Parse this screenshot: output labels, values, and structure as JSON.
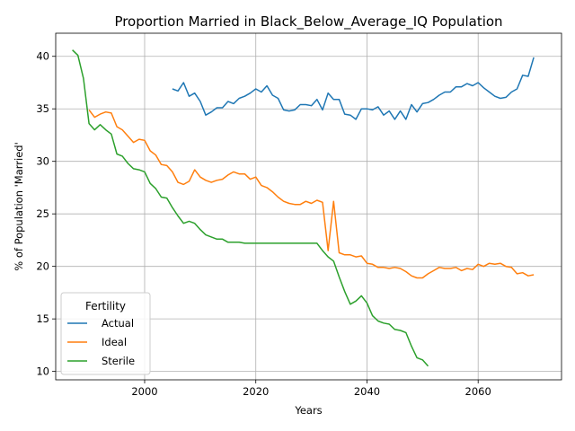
{
  "chart_data": {
    "type": "line",
    "title": "Proportion Married in Black_Below_Average_IQ Population",
    "xlabel": "Years",
    "ylabel": "% of Population 'Married'",
    "xlim": [
      1984,
      2075
    ],
    "ylim": [
      9.2,
      42.2
    ],
    "xticks": [
      2000,
      2020,
      2040,
      2060
    ],
    "yticks": [
      10,
      15,
      20,
      25,
      30,
      35,
      40
    ],
    "grid": true,
    "legend": {
      "title": "Fertility",
      "placement": "lower-left"
    },
    "series": [
      {
        "name": "Actual",
        "color": "#1f77b4",
        "x": [
          2005,
          2006,
          2007,
          2008,
          2009,
          2010,
          2011,
          2012,
          2013,
          2014,
          2015,
          2016,
          2017,
          2018,
          2019,
          2020,
          2021,
          2022,
          2023,
          2024,
          2025,
          2026,
          2027,
          2028,
          2029,
          2030,
          2031,
          2032,
          2033,
          2034,
          2035,
          2036,
          2037,
          2038,
          2039,
          2040,
          2041,
          2042,
          2043,
          2044,
          2045,
          2046,
          2047,
          2048,
          2049,
          2050,
          2051,
          2052,
          2053,
          2054,
          2055,
          2056,
          2057,
          2058,
          2059,
          2060,
          2061,
          2062,
          2063,
          2064,
          2065,
          2066,
          2067,
          2068,
          2069,
          2070
        ],
        "y": [
          36.9,
          36.7,
          37.5,
          36.2,
          36.5,
          35.7,
          34.4,
          34.7,
          35.1,
          35.1,
          35.7,
          35.5,
          36.0,
          36.2,
          36.5,
          36.9,
          36.6,
          37.2,
          36.3,
          36.0,
          34.9,
          34.8,
          34.9,
          35.4,
          35.4,
          35.3,
          35.9,
          34.9,
          36.5,
          35.9,
          35.9,
          34.5,
          34.4,
          34.0,
          35.0,
          35.0,
          34.9,
          35.2,
          34.4,
          34.8,
          34.0,
          34.8,
          34.0,
          35.4,
          34.7,
          35.5,
          35.6,
          35.9,
          36.3,
          36.6,
          36.6,
          37.1,
          37.1,
          37.4,
          37.2,
          37.5,
          37.0,
          36.6,
          36.2,
          36.0,
          36.1,
          36.6,
          36.9,
          38.2,
          38.1,
          39.9
        ]
      },
      {
        "name": "Ideal",
        "color": "#ff7f0e",
        "x": [
          1990,
          1991,
          1992,
          1993,
          1994,
          1995,
          1996,
          1997,
          1998,
          1999,
          2000,
          2001,
          2002,
          2003,
          2004,
          2005,
          2006,
          2007,
          2008,
          2009,
          2010,
          2011,
          2012,
          2013,
          2014,
          2015,
          2016,
          2017,
          2018,
          2019,
          2020,
          2021,
          2022,
          2023,
          2024,
          2025,
          2026,
          2027,
          2028,
          2029,
          2030,
          2031,
          2032,
          2033,
          2034,
          2035,
          2036,
          2037,
          2038,
          2039,
          2040,
          2041,
          2042,
          2043,
          2044,
          2045,
          2046,
          2047,
          2048,
          2049,
          2050,
          2051,
          2052,
          2053,
          2054,
          2055,
          2056,
          2057,
          2058,
          2059,
          2060,
          2061,
          2062,
          2063,
          2064,
          2065,
          2066,
          2067,
          2068,
          2069,
          2070
        ],
        "y": [
          34.9,
          34.2,
          34.5,
          34.7,
          34.6,
          33.3,
          33.0,
          32.4,
          31.8,
          32.1,
          32.0,
          31.0,
          30.6,
          29.7,
          29.6,
          29.0,
          28.0,
          27.8,
          28.1,
          29.2,
          28.5,
          28.2,
          28.0,
          28.2,
          28.3,
          28.7,
          29.0,
          28.8,
          28.8,
          28.3,
          28.5,
          27.7,
          27.5,
          27.1,
          26.6,
          26.2,
          26.0,
          25.9,
          25.9,
          26.2,
          26.0,
          26.3,
          26.1,
          21.5,
          26.2,
          21.3,
          21.1,
          21.1,
          20.9,
          21.0,
          20.3,
          20.2,
          19.9,
          19.9,
          19.8,
          19.9,
          19.8,
          19.5,
          19.1,
          18.9,
          18.9,
          19.3,
          19.6,
          19.9,
          19.8,
          19.8,
          19.9,
          19.6,
          19.8,
          19.7,
          20.2,
          20.0,
          20.3,
          20.2,
          20.3,
          20.0,
          19.9,
          19.3,
          19.4,
          19.1,
          19.2
        ]
      },
      {
        "name": "Sterile",
        "color": "#2ca02c",
        "x": [
          1987,
          1988,
          1989,
          1990,
          1991,
          1992,
          1993,
          1994,
          1995,
          1996,
          1997,
          1998,
          1999,
          2000,
          2001,
          2002,
          2003,
          2004,
          2005,
          2006,
          2007,
          2008,
          2009,
          2010,
          2011,
          2012,
          2013,
          2014,
          2015,
          2016,
          2017,
          2018,
          2019,
          2020,
          2021,
          2022,
          2023,
          2024,
          2025,
          2026,
          2027,
          2028,
          2029,
          2030,
          2031,
          2032,
          2033,
          2034,
          2035,
          2036,
          2037,
          2038,
          2039,
          2040,
          2041,
          2042,
          2043,
          2044,
          2045,
          2046,
          2047,
          2048,
          2049,
          2050,
          2051
        ],
        "y": [
          40.6,
          40.1,
          37.9,
          33.6,
          33.0,
          33.5,
          33.0,
          32.6,
          30.7,
          30.5,
          29.8,
          29.3,
          29.2,
          29.0,
          27.9,
          27.4,
          26.6,
          26.5,
          25.6,
          24.8,
          24.1,
          24.3,
          24.1,
          23.5,
          23.0,
          22.8,
          22.6,
          22.6,
          22.3,
          22.3,
          22.3,
          22.2,
          22.2,
          22.2,
          22.2,
          22.2,
          22.2,
          22.2,
          22.2,
          22.2,
          22.2,
          22.2,
          22.2,
          22.2,
          22.2,
          21.5,
          20.9,
          20.5,
          19.0,
          17.6,
          16.4,
          16.7,
          17.2,
          16.5,
          15.3,
          14.8,
          14.6,
          14.5,
          14.0,
          13.9,
          13.7,
          12.4,
          11.3,
          11.1,
          10.5
        ]
      }
    ]
  }
}
